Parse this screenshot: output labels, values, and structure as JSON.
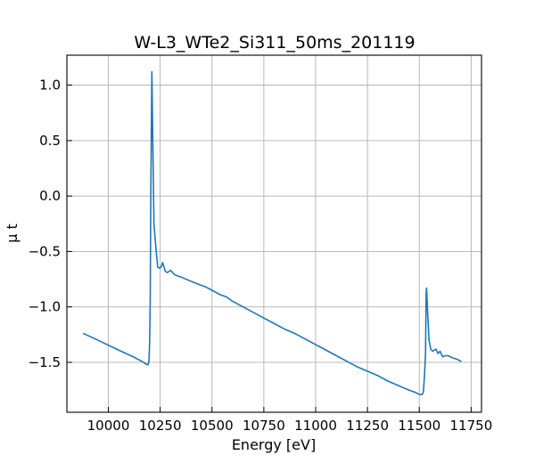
{
  "chart_data": {
    "type": "line",
    "title": "W-L3_WTe2_Si311_50ms_201119",
    "xlabel": "Energy [eV]",
    "ylabel": "μ t",
    "xlim": [
      9800,
      11800
    ],
    "ylim": [
      -1.95,
      1.27
    ],
    "xticks": [
      10000,
      10250,
      10500,
      10750,
      11000,
      11250,
      11500,
      11750
    ],
    "yticks": [
      1.0,
      0.5,
      0.0,
      -0.5,
      -1.0,
      -1.5
    ],
    "xtick_labels": [
      "10000",
      "10250",
      "10500",
      "10750",
      "11000",
      "11250",
      "11500",
      "11750"
    ],
    "ytick_labels": [
      "1.0",
      "0.5",
      "0.0",
      "−0.5",
      "−1.0",
      "−1.5"
    ],
    "grid": true,
    "line_color": "#1f77b4",
    "series": [
      {
        "name": "μ t",
        "x": [
          9880,
          9950,
          10050,
          10120,
          10170,
          10185,
          10192,
          10196,
          10199,
          10202,
          10205,
          10210,
          10220,
          10230,
          10238,
          10245,
          10255,
          10262,
          10275,
          10285,
          10300,
          10320,
          10350,
          10400,
          10440,
          10470,
          10500,
          10540,
          10570,
          10600,
          10650,
          10700,
          10750,
          10800,
          10850,
          10900,
          10950,
          11000,
          11050,
          11100,
          11150,
          11200,
          11250,
          11300,
          11350,
          11400,
          11450,
          11480,
          11500,
          11515,
          11520,
          11525,
          11530,
          11533,
          11535,
          11540,
          11547,
          11555,
          11565,
          11572,
          11580,
          11590,
          11600,
          11612,
          11625,
          11640,
          11660,
          11680,
          11700
        ],
        "y": [
          -1.24,
          -1.3,
          -1.39,
          -1.45,
          -1.5,
          -1.52,
          -1.52,
          -1.49,
          -1.33,
          -0.95,
          0.05,
          1.12,
          -0.25,
          -0.48,
          -0.64,
          -0.65,
          -0.64,
          -0.6,
          -0.68,
          -0.69,
          -0.67,
          -0.71,
          -0.73,
          -0.77,
          -0.8,
          -0.82,
          -0.85,
          -0.89,
          -0.91,
          -0.95,
          -1.0,
          -1.05,
          -1.1,
          -1.15,
          -1.2,
          -1.24,
          -1.29,
          -1.34,
          -1.39,
          -1.44,
          -1.49,
          -1.54,
          -1.58,
          -1.62,
          -1.67,
          -1.71,
          -1.75,
          -1.77,
          -1.79,
          -1.79,
          -1.76,
          -1.62,
          -1.42,
          -0.88,
          -0.83,
          -1.05,
          -1.3,
          -1.38,
          -1.4,
          -1.39,
          -1.38,
          -1.42,
          -1.4,
          -1.45,
          -1.44,
          -1.44,
          -1.46,
          -1.47,
          -1.49
        ]
      }
    ]
  }
}
